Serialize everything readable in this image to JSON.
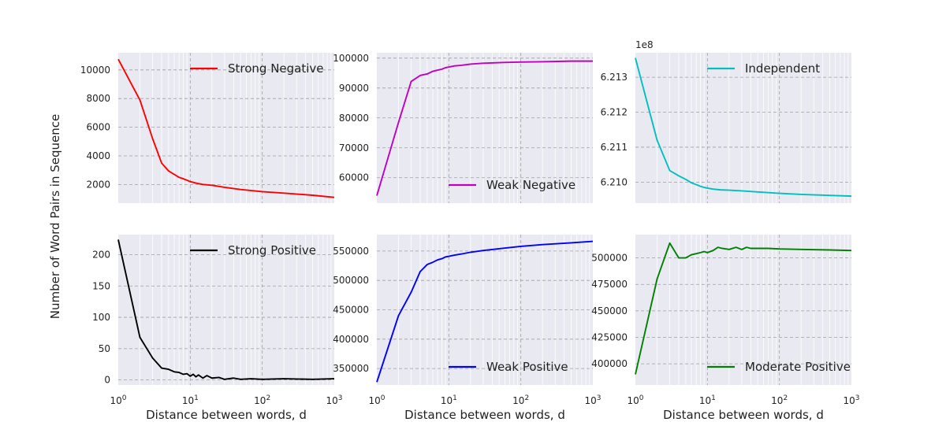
{
  "figure": {
    "ylabel": "Number of Word Pairs in Sequence"
  },
  "chart_data": [
    {
      "type": "line",
      "series": [
        {
          "name": "Strong Negative",
          "color": "#ff0000",
          "x": [
            1,
            2,
            3,
            4,
            5,
            6,
            7,
            8,
            9,
            10,
            12,
            15,
            20,
            30,
            50,
            100,
            200,
            500,
            1000
          ],
          "y": [
            10750,
            7900,
            5200,
            3500,
            2950,
            2700,
            2500,
            2400,
            2300,
            2200,
            2100,
            2000,
            1950,
            1800,
            1650,
            1500,
            1400,
            1250,
            1100
          ]
        }
      ],
      "xscale": "log",
      "xlim": [
        1,
        1000
      ],
      "ylim": [
        700,
        11200
      ],
      "yticks": [
        2000,
        4000,
        6000,
        8000,
        10000
      ],
      "ytick_labels": [
        "2000",
        "4000",
        "6000",
        "8000",
        "10000"
      ],
      "legend_loc": "upper right"
    },
    {
      "type": "line",
      "series": [
        {
          "name": "Weak Negative",
          "color": "#bf00bf",
          "x": [
            1,
            2,
            3,
            4,
            5,
            6,
            7,
            8,
            9,
            10,
            12,
            15,
            20,
            30,
            50,
            100,
            200,
            500,
            1000
          ],
          "y": [
            54000,
            78500,
            92200,
            94200,
            94700,
            95600,
            96000,
            96300,
            96800,
            97000,
            97400,
            97600,
            98000,
            98300,
            98500,
            98700,
            98800,
            99000,
            99000
          ]
        }
      ],
      "xscale": "log",
      "xlim": [
        1,
        1000
      ],
      "ylim": [
        51500,
        101800
      ],
      "yticks": [
        60000,
        70000,
        80000,
        90000,
        100000
      ],
      "ytick_labels": [
        "60000",
        "70000",
        "80000",
        "90000",
        "100000"
      ],
      "legend_loc": "lower right"
    },
    {
      "type": "line",
      "series": [
        {
          "name": "Independent",
          "color": "#00bfbf",
          "x": [
            1,
            2,
            3,
            4,
            5,
            6,
            7,
            8,
            9,
            10,
            12,
            15,
            20,
            30,
            50,
            100,
            200,
            500,
            1000
          ],
          "y": [
            621.355,
            621.12,
            621.033,
            621.018,
            621.008,
            620.998,
            620.993,
            620.988,
            620.985,
            620.983,
            620.98,
            620.978,
            620.977,
            620.975,
            620.972,
            620.968,
            620.965,
            620.962,
            620.96
          ]
        }
      ],
      "xscale": "log",
      "xlim": [
        1,
        1000
      ],
      "ylim": [
        620.94,
        621.37
      ],
      "yticks": [
        621.0,
        621.1,
        621.2,
        621.3
      ],
      "ytick_labels": [
        "6.210",
        "6.211",
        "6.212",
        "6.213"
      ],
      "offset_label": "1e8",
      "legend_loc": "upper right"
    },
    {
      "type": "line",
      "series": [
        {
          "name": "Strong Positive",
          "color": "#000000",
          "x": [
            1,
            2,
            3,
            4,
            5,
            6,
            7,
            8,
            9,
            10,
            11,
            12,
            13,
            15,
            17,
            20,
            25,
            30,
            40,
            50,
            70,
            100,
            200,
            500,
            1000
          ],
          "y": [
            224,
            68,
            35,
            19,
            17,
            13,
            12,
            9,
            10,
            6,
            9,
            5,
            8,
            3,
            7,
            3,
            4,
            1,
            3,
            1,
            2,
            1,
            2,
            1,
            2
          ]
        }
      ],
      "xscale": "log",
      "xlim": [
        1,
        1000
      ],
      "ylim": [
        -8,
        232
      ],
      "yticks": [
        0,
        50,
        100,
        150,
        200
      ],
      "ytick_labels": [
        "0",
        "50",
        "100",
        "150",
        "200"
      ],
      "legend_loc": "upper right"
    },
    {
      "type": "line",
      "series": [
        {
          "name": "Weak Positive",
          "color": "#0000ff",
          "x": [
            1,
            2,
            3,
            4,
            5,
            6,
            7,
            8,
            9,
            10,
            12,
            15,
            20,
            30,
            50,
            100,
            200,
            500,
            1000
          ],
          "y": [
            327000,
            440000,
            480000,
            515000,
            527000,
            531000,
            535000,
            537000,
            540000,
            541000,
            543000,
            545000,
            548000,
            551000,
            554000,
            558000,
            561000,
            564000,
            566500
          ]
        }
      ],
      "xscale": "log",
      "xlim": [
        1,
        1000
      ],
      "ylim": [
        322000,
        578000
      ],
      "yticks": [
        350000,
        400000,
        450000,
        500000,
        550000
      ],
      "ytick_labels": [
        "350000",
        "400000",
        "450000",
        "500000",
        "550000"
      ],
      "legend_loc": "lower right"
    },
    {
      "type": "line",
      "series": [
        {
          "name": "Moderate Positive",
          "color": "#008000",
          "x": [
            1,
            2,
            3,
            4,
            5,
            6,
            7,
            8,
            9,
            10,
            12,
            14,
            16,
            20,
            25,
            30,
            35,
            40,
            50,
            70,
            100,
            200,
            500,
            1000
          ],
          "y": [
            390000,
            480000,
            514000,
            500000,
            500000,
            503000,
            504000,
            505000,
            506000,
            505000,
            507000,
            510000,
            509000,
            508000,
            510000,
            508000,
            510000,
            509000,
            509000,
            509000,
            508500,
            508000,
            507500,
            507000
          ]
        }
      ],
      "xscale": "log",
      "xlim": [
        1,
        1000
      ],
      "ylim": [
        380000,
        522000
      ],
      "yticks": [
        400000,
        425000,
        450000,
        475000,
        500000
      ],
      "ytick_labels": [
        "400000",
        "425000",
        "450000",
        "475000",
        "500000"
      ],
      "legend_loc": "lower right"
    }
  ],
  "xaxis": {
    "xlabel": "Distance between words, d",
    "tick_base": "10",
    "tick_exponents": [
      "0",
      "1",
      "2",
      "3"
    ]
  }
}
